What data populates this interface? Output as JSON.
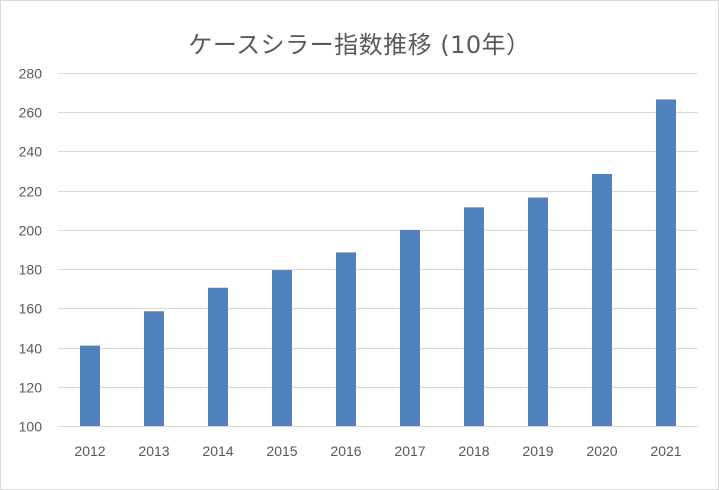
{
  "chart_data": {
    "type": "bar",
    "title": "ケースシラー指数推移 (10年）",
    "xlabel": "",
    "ylabel": "",
    "categories": [
      "2012",
      "2013",
      "2014",
      "2015",
      "2016",
      "2017",
      "2018",
      "2019",
      "2020",
      "2021"
    ],
    "values": [
      141,
      158.5,
      170.5,
      179.5,
      188.5,
      200,
      211.5,
      216.5,
      228.5,
      266.5
    ],
    "ylim": [
      100,
      280
    ],
    "yticks": [
      100,
      120,
      140,
      160,
      180,
      200,
      220,
      240,
      260,
      280
    ],
    "grid": true,
    "legend": "none",
    "bar_color": "#4f81bd"
  }
}
